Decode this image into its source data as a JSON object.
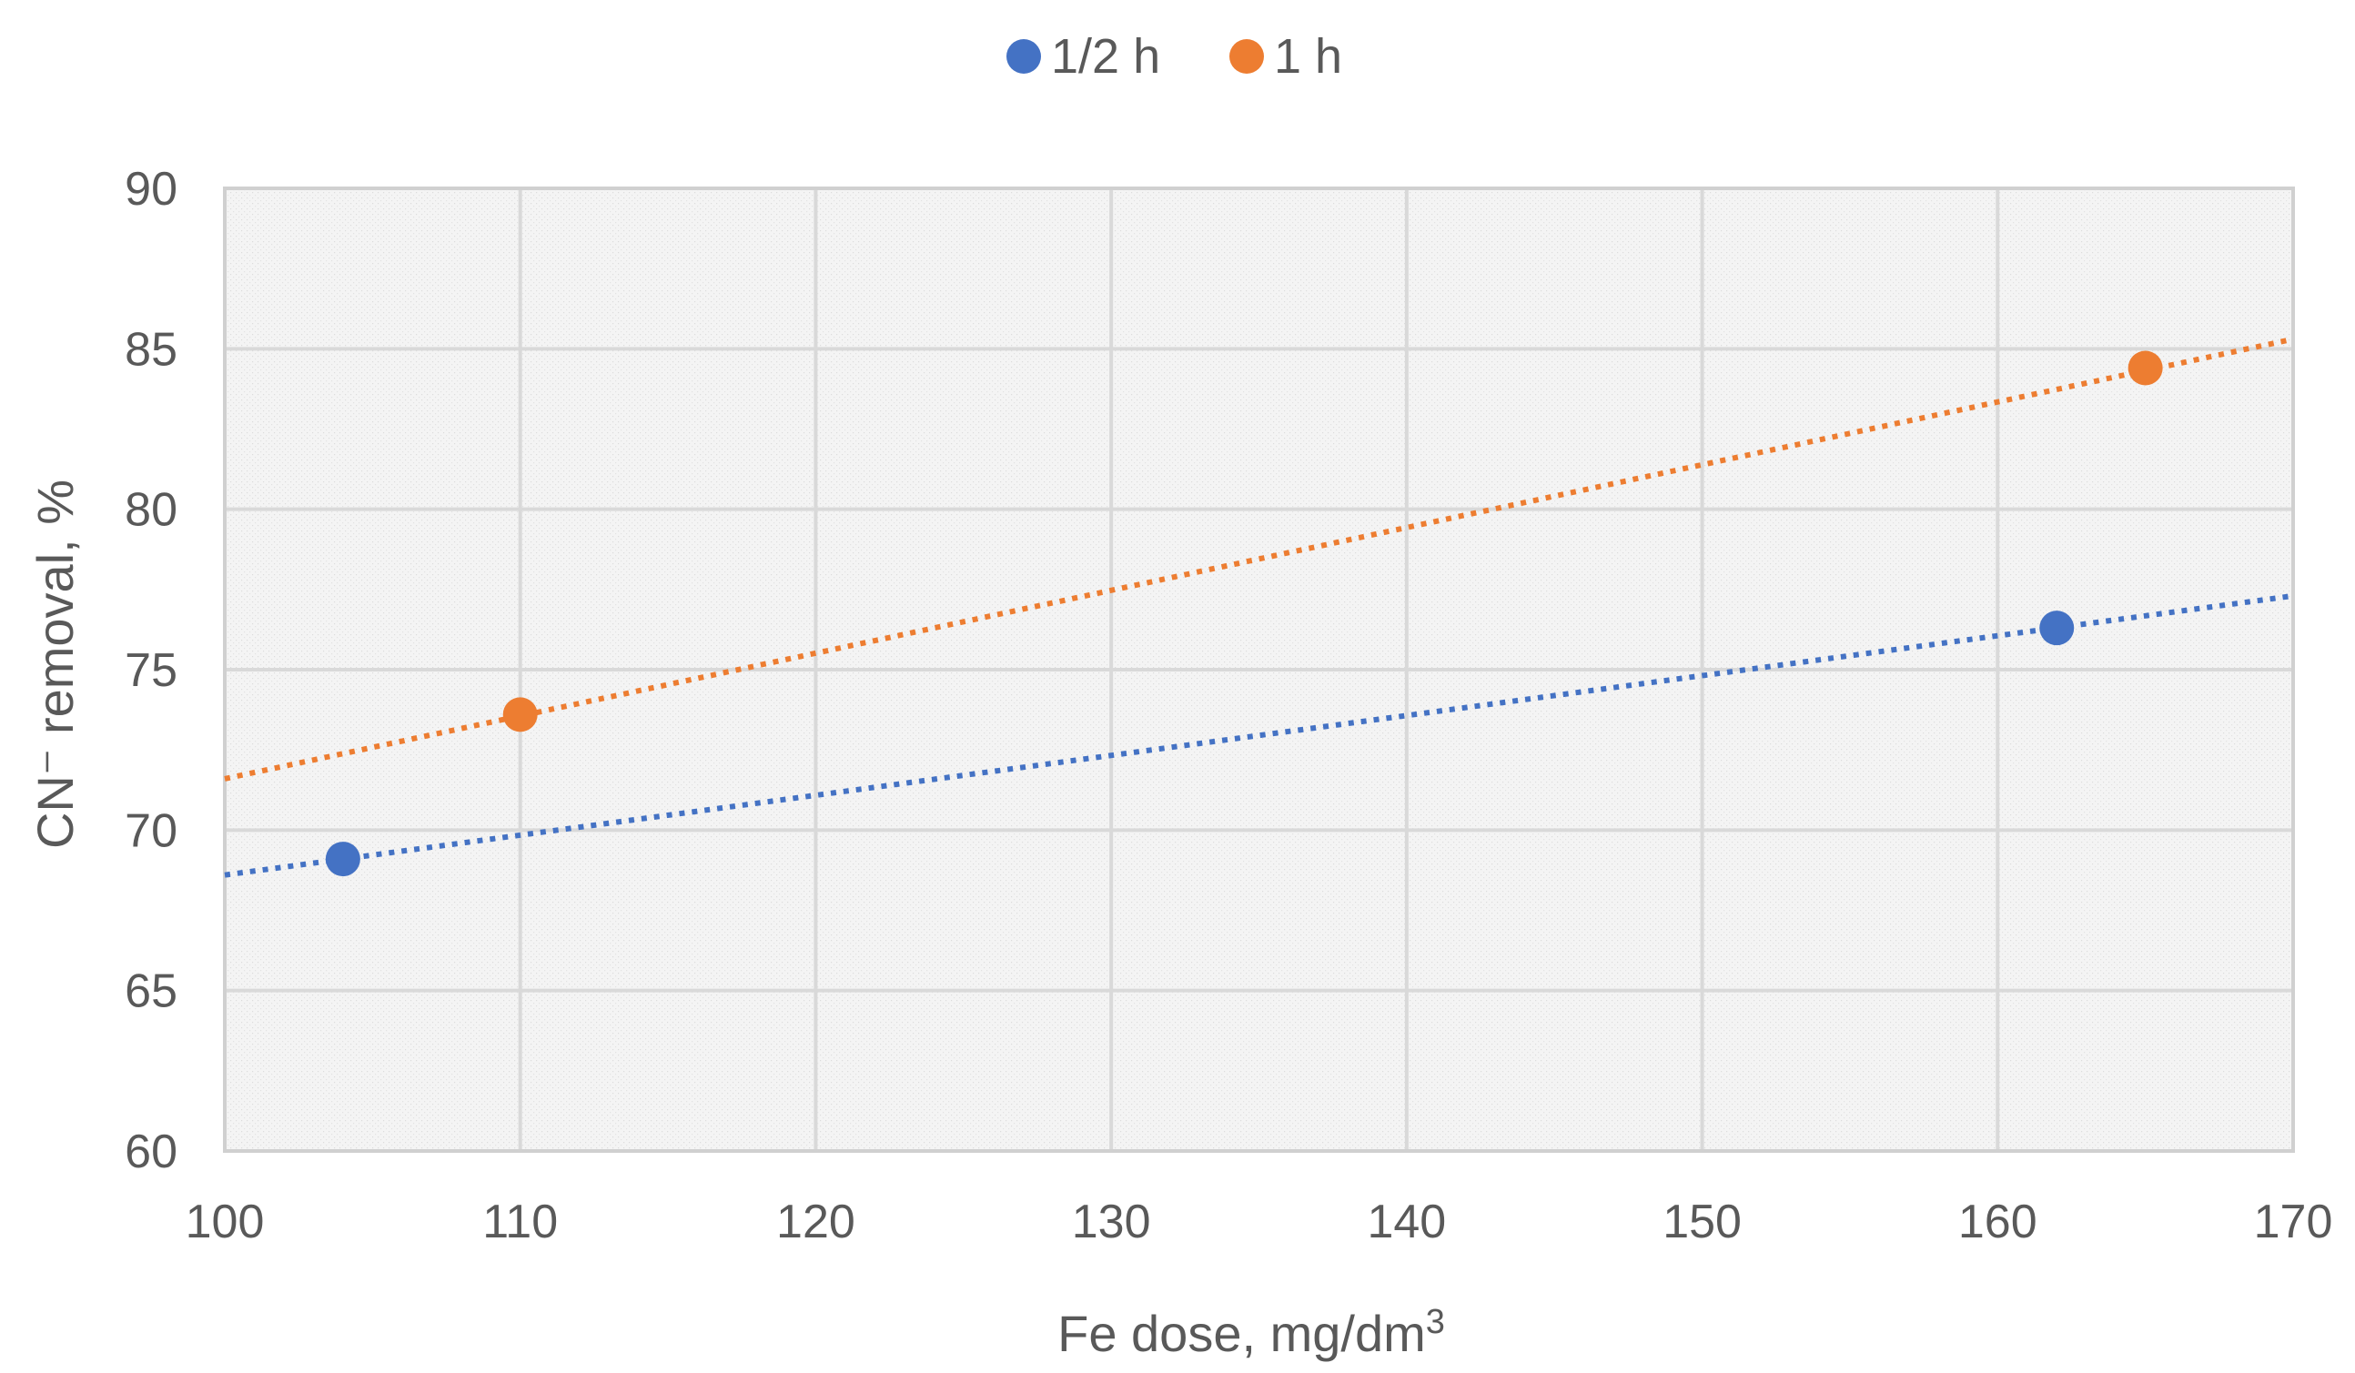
{
  "chart_data": {
    "type": "scatter",
    "title": "",
    "xlabel": "Fe dose, mg/dm",
    "xlabel_sup": "3",
    "ylabel": "CN⁻ removal, %",
    "xlim": [
      100,
      170
    ],
    "ylim": [
      60,
      90
    ],
    "x_ticks": [
      100,
      110,
      120,
      130,
      140,
      150,
      160,
      170
    ],
    "y_ticks": [
      60,
      65,
      70,
      75,
      80,
      85,
      90
    ],
    "grid": true,
    "legend_position": "top-center",
    "trendline": "linear, dotted",
    "series": [
      {
        "name": "1/2 h",
        "color": "#4472C4",
        "points": [
          {
            "x": 104,
            "y": 69.1
          },
          {
            "x": 162,
            "y": 76.3
          }
        ],
        "trend_start": {
          "x": 100,
          "y": 68.6
        },
        "trend_end": {
          "x": 170,
          "y": 77.3
        }
      },
      {
        "name": "1 h",
        "color": "#ED7D31",
        "points": [
          {
            "x": 110,
            "y": 73.6
          },
          {
            "x": 165,
            "y": 84.4
          }
        ],
        "trend_start": {
          "x": 100,
          "y": 71.6
        },
        "trend_end": {
          "x": 170,
          "y": 85.3
        }
      }
    ]
  }
}
